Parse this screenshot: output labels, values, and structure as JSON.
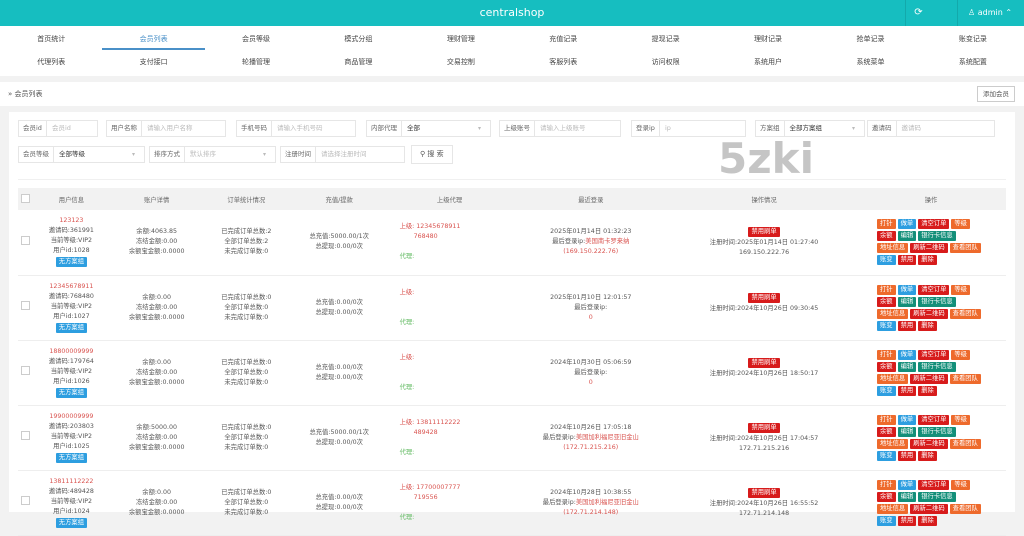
{
  "app": {
    "title": "centralshop",
    "user": "admin",
    "refresh_icon": "refresh-icon",
    "user_icon": "user-icon"
  },
  "nav": {
    "row1": [
      "首页统计",
      "会员列表",
      "会员等级",
      "模式分组",
      "理财管理",
      "充值记录",
      "提现记录",
      "理财记录",
      "抢单记录",
      "账变记录"
    ],
    "row2": [
      "代理列表",
      "支付接口",
      "轮播管理",
      "商品管理",
      "交易控制",
      "客服列表",
      "访问权限",
      "系统用户",
      "系统菜单",
      "系统配置"
    ],
    "active": "会员列表"
  },
  "watermark": "5zki",
  "breadcrumb": {
    "text": "会员列表",
    "add_button": "添加会员"
  },
  "filters": {
    "member_id": {
      "label": "会员id",
      "placeholder": "会员id"
    },
    "username": {
      "label": "用户名称",
      "placeholder": "请输入用户名称"
    },
    "phone": {
      "label": "手机号码",
      "placeholder": "请输入手机号码"
    },
    "internal_agent": {
      "label": "内部代理",
      "value": "全部"
    },
    "parent_account": {
      "label": "上级账号",
      "placeholder": "请输入上级账号"
    },
    "login_ip": {
      "label": "登录ip",
      "placeholder": "ip"
    },
    "plan_group": {
      "label": "方案组",
      "value": "全部方案组"
    },
    "invite_code": {
      "label": "邀请码",
      "placeholder": "邀请码"
    },
    "member_level": {
      "label": "会员等级",
      "value": "全部等级"
    },
    "sort": {
      "label": "排序方式",
      "placeholder": "默认排序"
    },
    "reg_time": {
      "label": "注册时间",
      "placeholder": "请选择注册时间"
    },
    "search_button": "搜 索"
  },
  "table": {
    "headers": [
      "用户信息",
      "账户详情",
      "订单统计情况",
      "充值/提款",
      "上级代理",
      "最近登录",
      "操作情况",
      "操作"
    ],
    "labels": {
      "invite": "邀请码:",
      "level": "当前等级:",
      "uid": "用户id:",
      "balance": "余额:",
      "frozen": "冻结金额:",
      "yuebao": "余额宝金额:",
      "done": "已完成订单总数:",
      "all": "全部订单总数:",
      "undone": "未完成订单数:",
      "recharge": "总充值:",
      "withdraw": "总提现:",
      "parent": "上级:",
      "agent": "代理:",
      "last_ip": "最后登录ip:",
      "reg": "注册时间:"
    },
    "status_tag": "禁用刷单",
    "actions": [
      [
        "打针",
        "做单",
        "清空订单",
        "等级"
      ],
      [
        "余额",
        "编辑",
        "银行卡信息"
      ],
      [
        "地址信息",
        "刷新二维码",
        "查看团队"
      ],
      [
        "账变",
        "禁用",
        "删除"
      ]
    ],
    "action_colors": [
      [
        "orange",
        "blue",
        "redb",
        "orange"
      ],
      [
        "redb",
        "teal",
        "teal"
      ],
      [
        "orange",
        "redb",
        "orange"
      ],
      [
        "blue",
        "redb",
        "redb"
      ]
    ],
    "rows": [
      {
        "user": "123123",
        "invite": "361991",
        "level": "VIP2",
        "uid": "1028",
        "plan": "无方案组",
        "balance": "4063.85",
        "frozen": "0.00",
        "yuebao": "0.0000",
        "done": "2",
        "all": "2",
        "undone": "0",
        "recharge": "5000.00/1次",
        "withdraw": "0.00/0次",
        "parent": "12345678911",
        "parent_code": "768480",
        "login_time": "2025年01月14日 01:32:23",
        "login_loc": "美国南卡罗来纳",
        "login_ip": "(169.150.222.76)",
        "reg_time": "2025年01月14日 01:27:40",
        "reg_ip": "169.150.222.76"
      },
      {
        "user": "12345678911",
        "invite": "768480",
        "level": "VIP2",
        "uid": "1027",
        "plan": "无方案组",
        "balance": "0.00",
        "frozen": "0.00",
        "yuebao": "0.0000",
        "done": "0",
        "all": "0",
        "undone": "0",
        "recharge": "0.00/0次",
        "withdraw": "0.00/0次",
        "parent": "",
        "parent_code": "",
        "login_time": "2025年01月10日 12:01:57",
        "login_loc": "",
        "login_ip": "0",
        "reg_time": "2024年10月26日 09:30:45",
        "reg_ip": ""
      },
      {
        "user": "18800009999",
        "invite": "179764",
        "level": "VIP2",
        "uid": "1026",
        "plan": "无方案组",
        "balance": "0.00",
        "frozen": "0.00",
        "yuebao": "0.0000",
        "done": "0",
        "all": "0",
        "undone": "0",
        "recharge": "0.00/0次",
        "withdraw": "0.00/0次",
        "parent": "",
        "parent_code": "",
        "login_time": "2024年10月30日 05:06:59",
        "login_loc": "",
        "login_ip": "0",
        "reg_time": "2024年10月26日 18:50:17",
        "reg_ip": ""
      },
      {
        "user": "19900009999",
        "invite": "203803",
        "level": "VIP2",
        "uid": "1025",
        "plan": "无方案组",
        "balance": "5000.00",
        "frozen": "0.00",
        "yuebao": "0.0000",
        "done": "0",
        "all": "0",
        "undone": "0",
        "recharge": "5000.00/1次",
        "withdraw": "0.00/0次",
        "parent": "13811112222",
        "parent_code": "489428",
        "login_time": "2024年10月26日 17:05:18",
        "login_loc": "美国加利福尼亚旧金山",
        "login_ip": "(172.71.215.216)",
        "reg_time": "2024年10月26日 17:04:57",
        "reg_ip": "172.71.215.216"
      },
      {
        "user": "13811112222",
        "invite": "489428",
        "level": "VIP2",
        "uid": "1024",
        "plan": "无方案组",
        "balance": "0.00",
        "frozen": "0.00",
        "yuebao": "0.0000",
        "done": "0",
        "all": "0",
        "undone": "0",
        "recharge": "0.00/0次",
        "withdraw": "0.00/0次",
        "parent": "17700007777",
        "parent_code": "719556",
        "login_time": "2024年10月28日 10:38:55",
        "login_loc": "美国加利福尼亚旧金山",
        "login_ip": "(172.71.214.148)",
        "reg_time": "2024年10月26日 16:55:52",
        "reg_ip": "172.71.214.148"
      }
    ]
  }
}
